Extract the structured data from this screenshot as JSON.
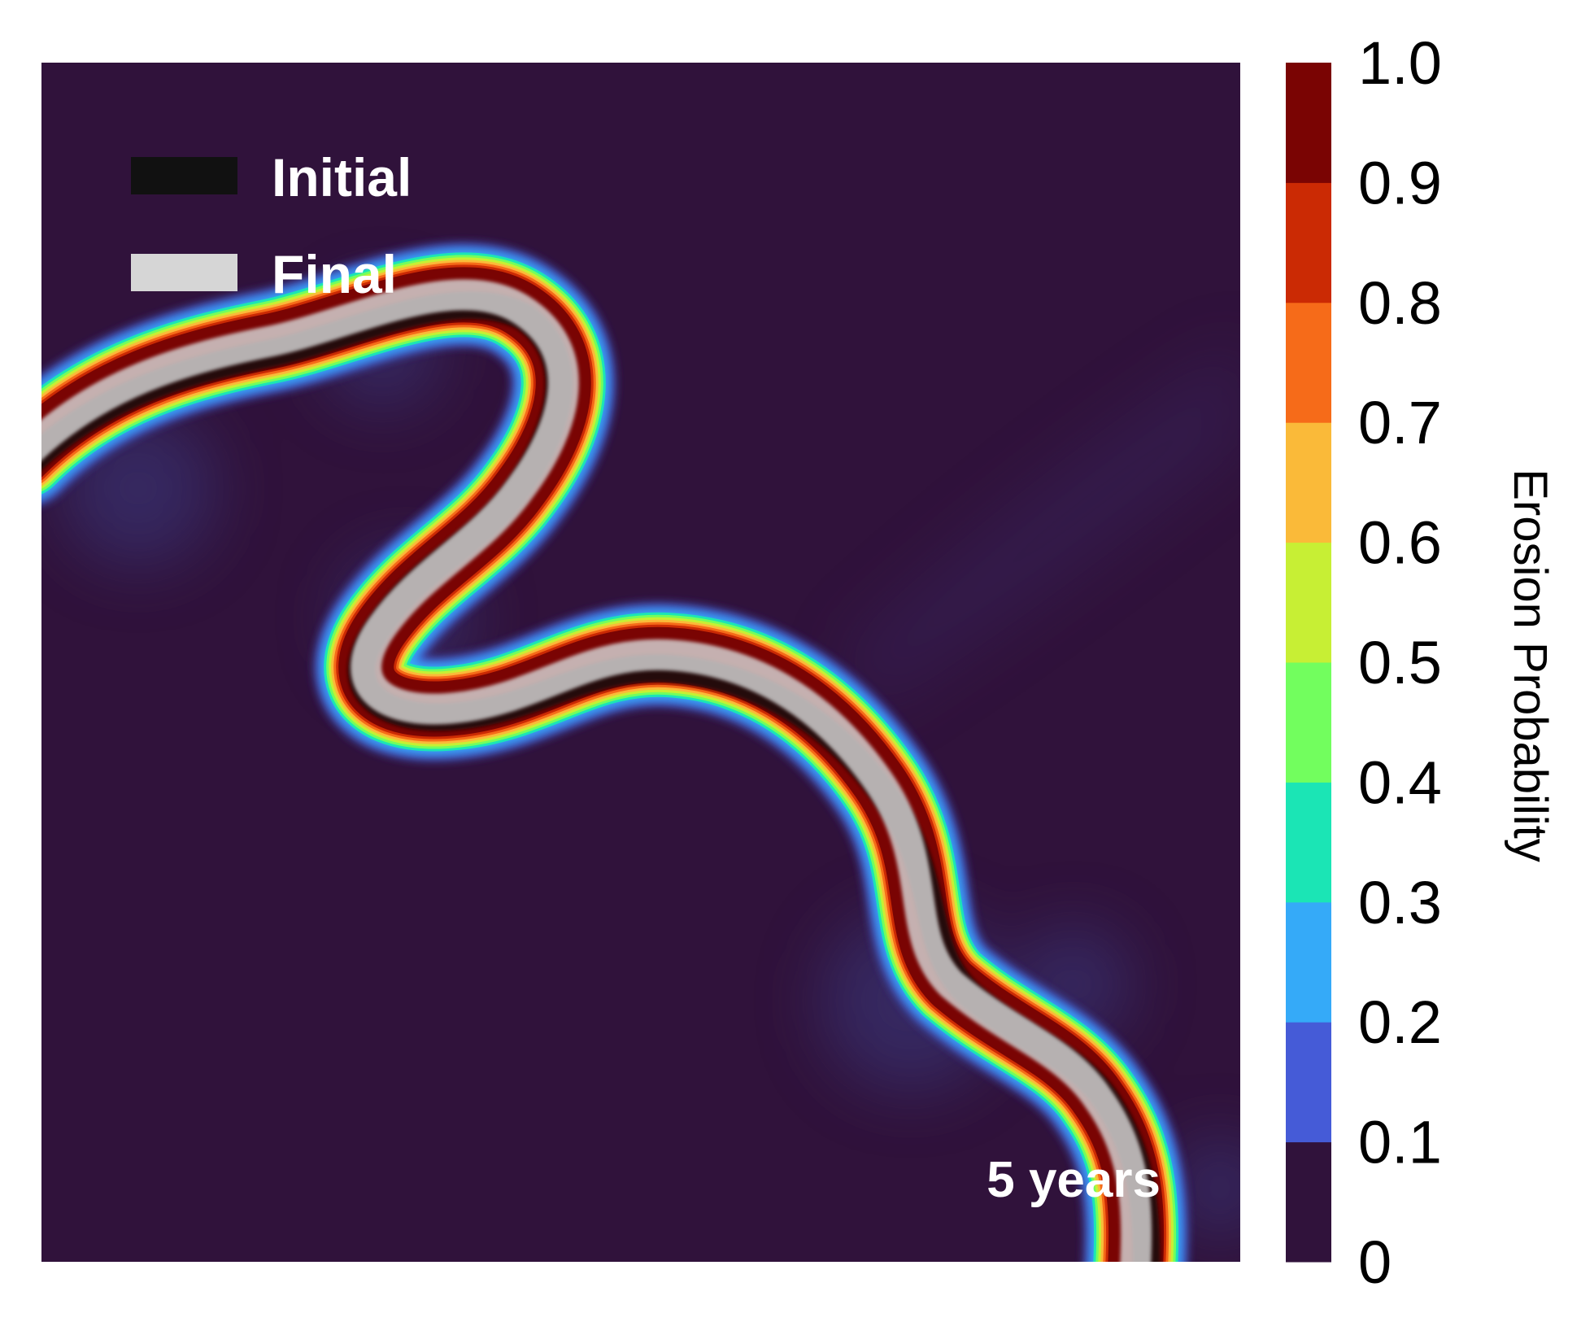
{
  "chart_data": {
    "type": "heatmap",
    "title": "",
    "xlabel": "",
    "ylabel": "",
    "annotation": "5 years",
    "legend": {
      "placement": "top-left",
      "entries": [
        {
          "label": "Initial",
          "color": "#111111"
        },
        {
          "label": "Final",
          "color": "#d6d6d6"
        }
      ]
    },
    "colorbar": {
      "label": "Erosion Probability",
      "range": [
        0,
        1
      ],
      "ticks": [
        "0",
        "0.1",
        "0.2",
        "0.3",
        "0.4",
        "0.5",
        "0.6",
        "0.7",
        "0.8",
        "0.9",
        "1.0"
      ],
      "bins": [
        {
          "from": 0.0,
          "to": 0.1,
          "color": "#30123b"
        },
        {
          "from": 0.1,
          "to": 0.2,
          "color": "#455bd7"
        },
        {
          "from": 0.2,
          "to": 0.3,
          "color": "#35aaf8"
        },
        {
          "from": 0.3,
          "to": 0.4,
          "color": "#1be5b5"
        },
        {
          "from": 0.4,
          "to": 0.5,
          "color": "#72fe5e"
        },
        {
          "from": 0.5,
          "to": 0.6,
          "color": "#c7ef34"
        },
        {
          "from": 0.6,
          "to": 0.7,
          "color": "#faba39"
        },
        {
          "from": 0.7,
          "to": 0.8,
          "color": "#f66b19"
        },
        {
          "from": 0.8,
          "to": 0.9,
          "color": "#cb2a04"
        },
        {
          "from": 0.9,
          "to": 1.0,
          "color": "#7a0403"
        }
      ]
    },
    "background_color": "#30123b"
  }
}
